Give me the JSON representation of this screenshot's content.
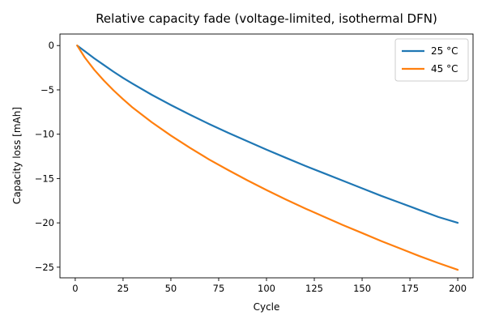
{
  "chart_data": {
    "type": "line",
    "title": "Relative capacity fade (voltage-limited, isothermal DFN)",
    "xlabel": "Cycle",
    "ylabel": "Capacity loss [mAh]",
    "xlim": [
      -8,
      208
    ],
    "ylim": [
      -26.2,
      1.3
    ],
    "xticks": [
      0,
      25,
      50,
      75,
      100,
      125,
      150,
      175,
      200
    ],
    "yticks": [
      0,
      -5,
      -10,
      -15,
      -20,
      -25
    ],
    "x": [
      1,
      5,
      10,
      15,
      20,
      25,
      30,
      40,
      50,
      60,
      70,
      80,
      90,
      100,
      110,
      120,
      130,
      140,
      150,
      160,
      170,
      180,
      190,
      200
    ],
    "series": [
      {
        "name": "25 °C",
        "color": "#1f77b4",
        "values": [
          0,
          -0.65,
          -1.45,
          -2.2,
          -2.95,
          -3.65,
          -4.3,
          -5.55,
          -6.7,
          -7.8,
          -8.85,
          -9.85,
          -10.8,
          -11.75,
          -12.65,
          -13.55,
          -14.4,
          -15.25,
          -16.1,
          -16.95,
          -17.75,
          -18.55,
          -19.35,
          -20.0
        ]
      },
      {
        "name": "45 °C",
        "color": "#ff7f0e",
        "values": [
          0,
          -1.35,
          -2.75,
          -3.95,
          -5.05,
          -6.05,
          -7.0,
          -8.65,
          -10.15,
          -11.55,
          -12.85,
          -14.05,
          -15.2,
          -16.3,
          -17.35,
          -18.35,
          -19.3,
          -20.25,
          -21.15,
          -22.05,
          -22.9,
          -23.75,
          -24.55,
          -25.3
        ]
      }
    ],
    "grid": false,
    "legend_position": "top-right"
  }
}
